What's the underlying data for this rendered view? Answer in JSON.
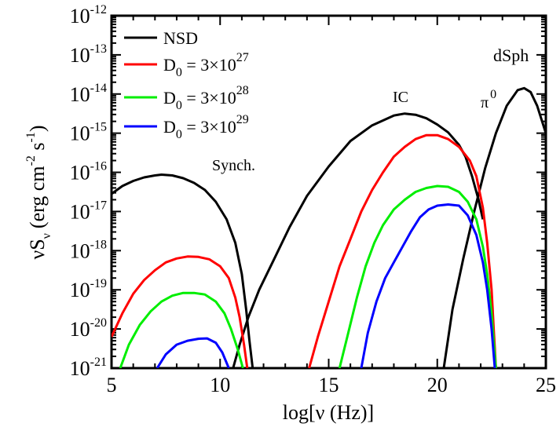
{
  "chart_data": {
    "type": "line",
    "xlabel": "log[ν (Hz)]",
    "ylabel": {
      "main": "νS",
      "sub": "ν",
      "unit": "(erg cm",
      "exp1": "-2",
      "mid": " s",
      "exp2": "-1",
      "end": ")"
    },
    "xlim": [
      5,
      25
    ],
    "ylim_log10": [
      -21,
      -12
    ],
    "log_y": true,
    "x_ticks": [
      "5",
      "10",
      "15",
      "20",
      "25"
    ],
    "y_tick_exponents": [
      "-21",
      "-20",
      "-19",
      "-18",
      "-17",
      "-16",
      "-15",
      "-14",
      "-13",
      "-12"
    ],
    "y_tick_base": "10",
    "legend_position": "top-left",
    "annotations": {
      "dsph": "dSph",
      "ic": "IC",
      "synch": "Synch.",
      "pi0_base": "π",
      "pi0_sup": "0"
    },
    "series": [
      {
        "name": "NSD",
        "color": "#000000",
        "legend_exp": "",
        "segments": [
          [
            [
              5,
              -16.55
            ],
            [
              5.5,
              -16.35
            ],
            [
              6,
              -16.22
            ],
            [
              6.5,
              -16.13
            ],
            [
              7,
              -16.08
            ],
            [
              7.3,
              -16.06
            ],
            [
              7.8,
              -16.08
            ],
            [
              8.3,
              -16.15
            ],
            [
              8.8,
              -16.27
            ],
            [
              9.3,
              -16.45
            ],
            [
              9.8,
              -16.75
            ],
            [
              10.3,
              -17.2
            ],
            [
              10.7,
              -17.8
            ],
            [
              11,
              -18.6
            ],
            [
              11.2,
              -19.5
            ],
            [
              11.35,
              -20.3
            ],
            [
              11.5,
              -21
            ]
          ],
          [
            [
              10.6,
              -21
            ],
            [
              10.9,
              -20.4
            ],
            [
              11.3,
              -19.7
            ],
            [
              11.8,
              -19.0
            ],
            [
              12.5,
              -18.2
            ],
            [
              13.2,
              -17.4
            ],
            [
              14,
              -16.6
            ],
            [
              15,
              -15.85
            ],
            [
              16,
              -15.2
            ],
            [
              17,
              -14.8
            ],
            [
              18,
              -14.55
            ],
            [
              18.5,
              -14.5
            ],
            [
              19,
              -14.53
            ],
            [
              19.5,
              -14.62
            ],
            [
              20,
              -14.78
            ],
            [
              20.5,
              -14.98
            ],
            [
              21,
              -15.3
            ],
            [
              21.3,
              -15.6
            ],
            [
              21.6,
              -16.1
            ],
            [
              21.9,
              -16.7
            ],
            [
              22.1,
              -17.2
            ]
          ],
          [
            [
              20.3,
              -21
            ],
            [
              20.7,
              -19.5
            ],
            [
              21.2,
              -18.2
            ],
            [
              21.7,
              -17.0
            ],
            [
              22.2,
              -15.9
            ],
            [
              22.7,
              -15.0
            ],
            [
              23.2,
              -14.3
            ],
            [
              23.7,
              -13.9
            ],
            [
              24,
              -13.85
            ],
            [
              24.3,
              -13.95
            ],
            [
              24.6,
              -14.3
            ],
            [
              25,
              -15.0
            ]
          ]
        ]
      },
      {
        "name": "D",
        "color": "#ff0000",
        "legend_sub": "0",
        "legend_mid": " = 3×10",
        "legend_exp": "27",
        "segments": [
          [
            [
              5,
              -20.2
            ],
            [
              5.5,
              -19.6
            ],
            [
              6,
              -19.1
            ],
            [
              6.5,
              -18.75
            ],
            [
              7,
              -18.5
            ],
            [
              7.5,
              -18.3
            ],
            [
              8,
              -18.2
            ],
            [
              8.5,
              -18.15
            ],
            [
              9,
              -18.16
            ],
            [
              9.5,
              -18.22
            ],
            [
              10,
              -18.4
            ],
            [
              10.4,
              -18.7
            ],
            [
              10.7,
              -19.2
            ],
            [
              10.9,
              -19.7
            ],
            [
              11.1,
              -20.4
            ],
            [
              11.25,
              -21
            ]
          ],
          [
            [
              14.1,
              -21
            ],
            [
              14.5,
              -20.2
            ],
            [
              15,
              -19.3
            ],
            [
              15.5,
              -18.4
            ],
            [
              16,
              -17.7
            ],
            [
              16.5,
              -17.0
            ],
            [
              17,
              -16.45
            ],
            [
              17.5,
              -16.0
            ],
            [
              18,
              -15.6
            ],
            [
              18.5,
              -15.35
            ],
            [
              19,
              -15.15
            ],
            [
              19.5,
              -15.05
            ],
            [
              20,
              -15.05
            ],
            [
              20.5,
              -15.15
            ],
            [
              21,
              -15.35
            ],
            [
              21.5,
              -15.7
            ],
            [
              21.8,
              -16.1
            ],
            [
              22.1,
              -16.9
            ],
            [
              22.3,
              -17.8
            ],
            [
              22.5,
              -19.0
            ],
            [
              22.6,
              -20.0
            ],
            [
              22.7,
              -21
            ]
          ]
        ]
      },
      {
        "name": "D",
        "color": "#00ee00",
        "legend_sub": "0",
        "legend_mid": " = 3×10",
        "legend_exp": "28",
        "segments": [
          [
            [
              5.4,
              -21
            ],
            [
              5.8,
              -20.4
            ],
            [
              6.3,
              -19.9
            ],
            [
              6.8,
              -19.55
            ],
            [
              7.3,
              -19.3
            ],
            [
              7.8,
              -19.15
            ],
            [
              8.3,
              -19.08
            ],
            [
              8.8,
              -19.08
            ],
            [
              9.3,
              -19.12
            ],
            [
              9.8,
              -19.3
            ],
            [
              10.2,
              -19.6
            ],
            [
              10.5,
              -20.0
            ],
            [
              10.8,
              -20.5
            ],
            [
              11.05,
              -21
            ]
          ],
          [
            [
              15.5,
              -21
            ],
            [
              15.9,
              -20.1
            ],
            [
              16.3,
              -19.2
            ],
            [
              16.7,
              -18.4
            ],
            [
              17.1,
              -17.8
            ],
            [
              17.5,
              -17.35
            ],
            [
              18,
              -16.95
            ],
            [
              18.5,
              -16.7
            ],
            [
              19,
              -16.5
            ],
            [
              19.5,
              -16.4
            ],
            [
              20,
              -16.35
            ],
            [
              20.5,
              -16.37
            ],
            [
              21,
              -16.5
            ],
            [
              21.4,
              -16.75
            ],
            [
              21.8,
              -17.2
            ],
            [
              22.1,
              -17.9
            ],
            [
              22.3,
              -18.6
            ],
            [
              22.5,
              -19.6
            ],
            [
              22.6,
              -20.3
            ],
            [
              22.7,
              -21
            ]
          ]
        ]
      },
      {
        "name": "D",
        "color": "#0000ff",
        "legend_sub": "0",
        "legend_mid": " = 3×10",
        "legend_exp": "29",
        "segments": [
          [
            [
              7.1,
              -21
            ],
            [
              7.5,
              -20.65
            ],
            [
              8,
              -20.4
            ],
            [
              8.5,
              -20.3
            ],
            [
              9,
              -20.25
            ],
            [
              9.4,
              -20.24
            ],
            [
              9.8,
              -20.35
            ],
            [
              10.1,
              -20.6
            ],
            [
              10.4,
              -21
            ]
          ],
          [
            [
              16.5,
              -21
            ],
            [
              16.8,
              -20.1
            ],
            [
              17.2,
              -19.3
            ],
            [
              17.6,
              -18.7
            ],
            [
              18,
              -18.3
            ],
            [
              18.4,
              -17.9
            ],
            [
              18.8,
              -17.5
            ],
            [
              19.2,
              -17.15
            ],
            [
              19.6,
              -16.95
            ],
            [
              20,
              -16.85
            ],
            [
              20.5,
              -16.82
            ],
            [
              21,
              -16.85
            ],
            [
              21.4,
              -17.1
            ],
            [
              21.8,
              -17.6
            ],
            [
              22.1,
              -18.3
            ],
            [
              22.3,
              -19.0
            ],
            [
              22.5,
              -20.0
            ],
            [
              22.65,
              -21
            ]
          ]
        ]
      }
    ]
  }
}
